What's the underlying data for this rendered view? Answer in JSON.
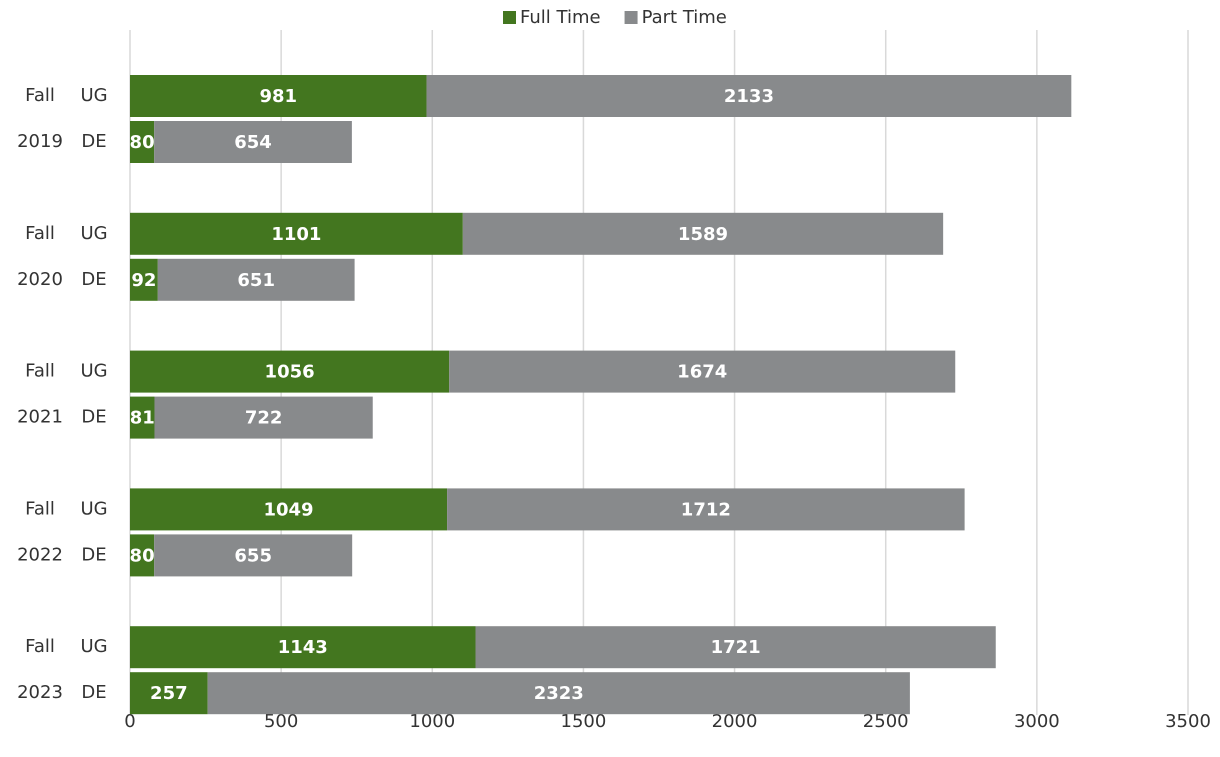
{
  "chart_data": {
    "type": "stacked-barh",
    "groups": [
      [
        "Fall",
        "2019"
      ],
      [
        "Fall",
        "2020"
      ],
      [
        "Fall",
        "2021"
      ],
      [
        "Fall",
        "2022"
      ],
      [
        "Fall",
        "2023"
      ]
    ],
    "categories": [
      "UG",
      "DE",
      "UG",
      "DE",
      "UG",
      "DE",
      "UG",
      "DE",
      "UG",
      "DE"
    ],
    "series": [
      {
        "name": "Full Time",
        "color": "#43761f",
        "values": [
          981,
          80,
          1101,
          92,
          1056,
          81,
          1049,
          80,
          1143,
          257
        ]
      },
      {
        "name": "Part Time",
        "color": "#888a8c",
        "values": [
          2133,
          654,
          1589,
          651,
          1674,
          722,
          1712,
          655,
          1721,
          2323
        ]
      }
    ],
    "xlim": [
      0,
      3500
    ],
    "xticks": [
      0,
      500,
      1000,
      1500,
      2000,
      2500,
      3000,
      3500
    ],
    "grid": true,
    "legend": "top"
  }
}
